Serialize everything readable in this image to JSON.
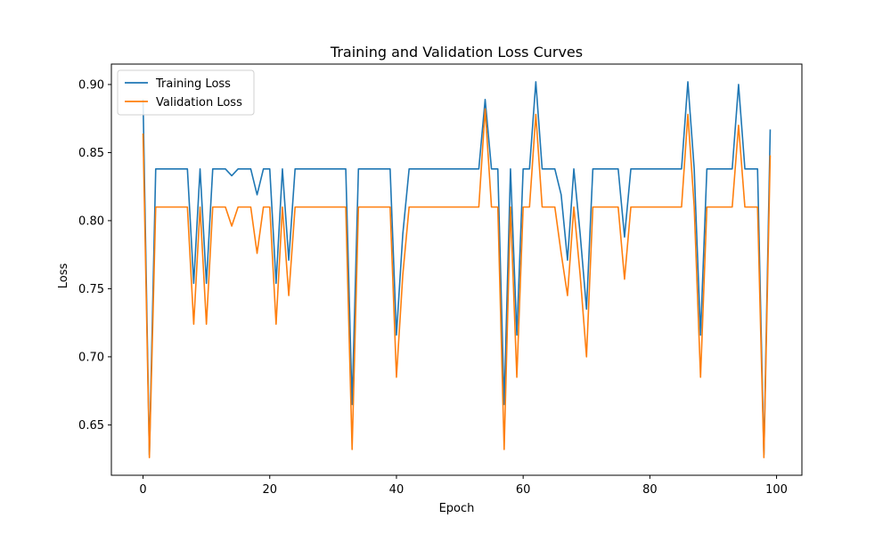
{
  "chart_data": {
    "type": "line",
    "title": "Training and Validation Loss Curves",
    "xlabel": "Epoch",
    "ylabel": "Loss",
    "xlim": [
      -5,
      104
    ],
    "ylim": [
      0.613,
      0.915
    ],
    "xticks": [
      0,
      20,
      40,
      60,
      80,
      100
    ],
    "yticks": [
      0.65,
      0.7,
      0.75,
      0.8,
      0.85,
      0.9
    ],
    "yticks_format": 2,
    "grid": false,
    "legend_position": "top-left",
    "series": [
      {
        "name": "Training Loss",
        "color": "#1f77b4",
        "x": [
          0,
          1,
          2,
          3,
          4,
          5,
          6,
          7,
          8,
          9,
          10,
          11,
          12,
          13,
          14,
          15,
          16,
          17,
          18,
          19,
          20,
          21,
          22,
          23,
          24,
          25,
          26,
          27,
          28,
          29,
          30,
          31,
          32,
          33,
          34,
          35,
          36,
          37,
          38,
          39,
          40,
          41,
          42,
          43,
          44,
          45,
          46,
          47,
          48,
          49,
          50,
          51,
          52,
          53,
          54,
          55,
          56,
          57,
          58,
          59,
          60,
          61,
          62,
          63,
          64,
          65,
          66,
          67,
          68,
          69,
          70,
          71,
          72,
          73,
          74,
          75,
          76,
          77,
          78,
          79,
          80,
          81,
          82,
          83,
          84,
          85,
          86,
          87,
          88,
          89,
          90,
          91,
          92,
          93,
          94,
          95,
          96,
          97,
          98,
          99
        ],
        "values": [
          0.889,
          0.628,
          0.838,
          0.838,
          0.838,
          0.838,
          0.838,
          0.838,
          0.754,
          0.838,
          0.754,
          0.838,
          0.838,
          0.838,
          0.833,
          0.838,
          0.838,
          0.838,
          0.819,
          0.838,
          0.838,
          0.754,
          0.838,
          0.771,
          0.838,
          0.838,
          0.838,
          0.838,
          0.838,
          0.838,
          0.838,
          0.838,
          0.838,
          0.665,
          0.838,
          0.838,
          0.838,
          0.838,
          0.838,
          0.838,
          0.716,
          0.79,
          0.838,
          0.838,
          0.838,
          0.838,
          0.838,
          0.838,
          0.838,
          0.838,
          0.838,
          0.838,
          0.838,
          0.838,
          0.889,
          0.838,
          0.838,
          0.665,
          0.838,
          0.716,
          0.838,
          0.838,
          0.902,
          0.838,
          0.838,
          0.838,
          0.819,
          0.771,
          0.838,
          0.79,
          0.735,
          0.838,
          0.838,
          0.838,
          0.838,
          0.838,
          0.788,
          0.838,
          0.838,
          0.838,
          0.838,
          0.838,
          0.838,
          0.838,
          0.838,
          0.838,
          0.902,
          0.838,
          0.716,
          0.838,
          0.838,
          0.838,
          0.838,
          0.838,
          0.9,
          0.838,
          0.838,
          0.838,
          0.628,
          0.867
        ]
      },
      {
        "name": "Validation Loss",
        "color": "#ff7f0e",
        "x": [
          0,
          1,
          2,
          3,
          4,
          5,
          6,
          7,
          8,
          9,
          10,
          11,
          12,
          13,
          14,
          15,
          16,
          17,
          18,
          19,
          20,
          21,
          22,
          23,
          24,
          25,
          26,
          27,
          28,
          29,
          30,
          31,
          32,
          33,
          34,
          35,
          36,
          37,
          38,
          39,
          40,
          41,
          42,
          43,
          44,
          45,
          46,
          47,
          48,
          49,
          50,
          51,
          52,
          53,
          54,
          55,
          56,
          57,
          58,
          59,
          60,
          61,
          62,
          63,
          64,
          65,
          66,
          67,
          68,
          69,
          70,
          71,
          72,
          73,
          74,
          75,
          76,
          77,
          78,
          79,
          80,
          81,
          82,
          83,
          84,
          85,
          86,
          87,
          88,
          89,
          90,
          91,
          92,
          93,
          94,
          95,
          96,
          97,
          98,
          99
        ],
        "values": [
          0.864,
          0.626,
          0.81,
          0.81,
          0.81,
          0.81,
          0.81,
          0.81,
          0.724,
          0.81,
          0.724,
          0.81,
          0.81,
          0.81,
          0.796,
          0.81,
          0.81,
          0.81,
          0.776,
          0.81,
          0.81,
          0.724,
          0.81,
          0.745,
          0.81,
          0.81,
          0.81,
          0.81,
          0.81,
          0.81,
          0.81,
          0.81,
          0.81,
          0.632,
          0.81,
          0.81,
          0.81,
          0.81,
          0.81,
          0.81,
          0.685,
          0.76,
          0.81,
          0.81,
          0.81,
          0.81,
          0.81,
          0.81,
          0.81,
          0.81,
          0.81,
          0.81,
          0.81,
          0.81,
          0.882,
          0.81,
          0.81,
          0.632,
          0.81,
          0.685,
          0.81,
          0.81,
          0.878,
          0.81,
          0.81,
          0.81,
          0.776,
          0.745,
          0.81,
          0.76,
          0.7,
          0.81,
          0.81,
          0.81,
          0.81,
          0.81,
          0.757,
          0.81,
          0.81,
          0.81,
          0.81,
          0.81,
          0.81,
          0.81,
          0.81,
          0.81,
          0.878,
          0.81,
          0.685,
          0.81,
          0.81,
          0.81,
          0.81,
          0.81,
          0.87,
          0.81,
          0.81,
          0.81,
          0.626,
          0.848
        ]
      }
    ]
  }
}
